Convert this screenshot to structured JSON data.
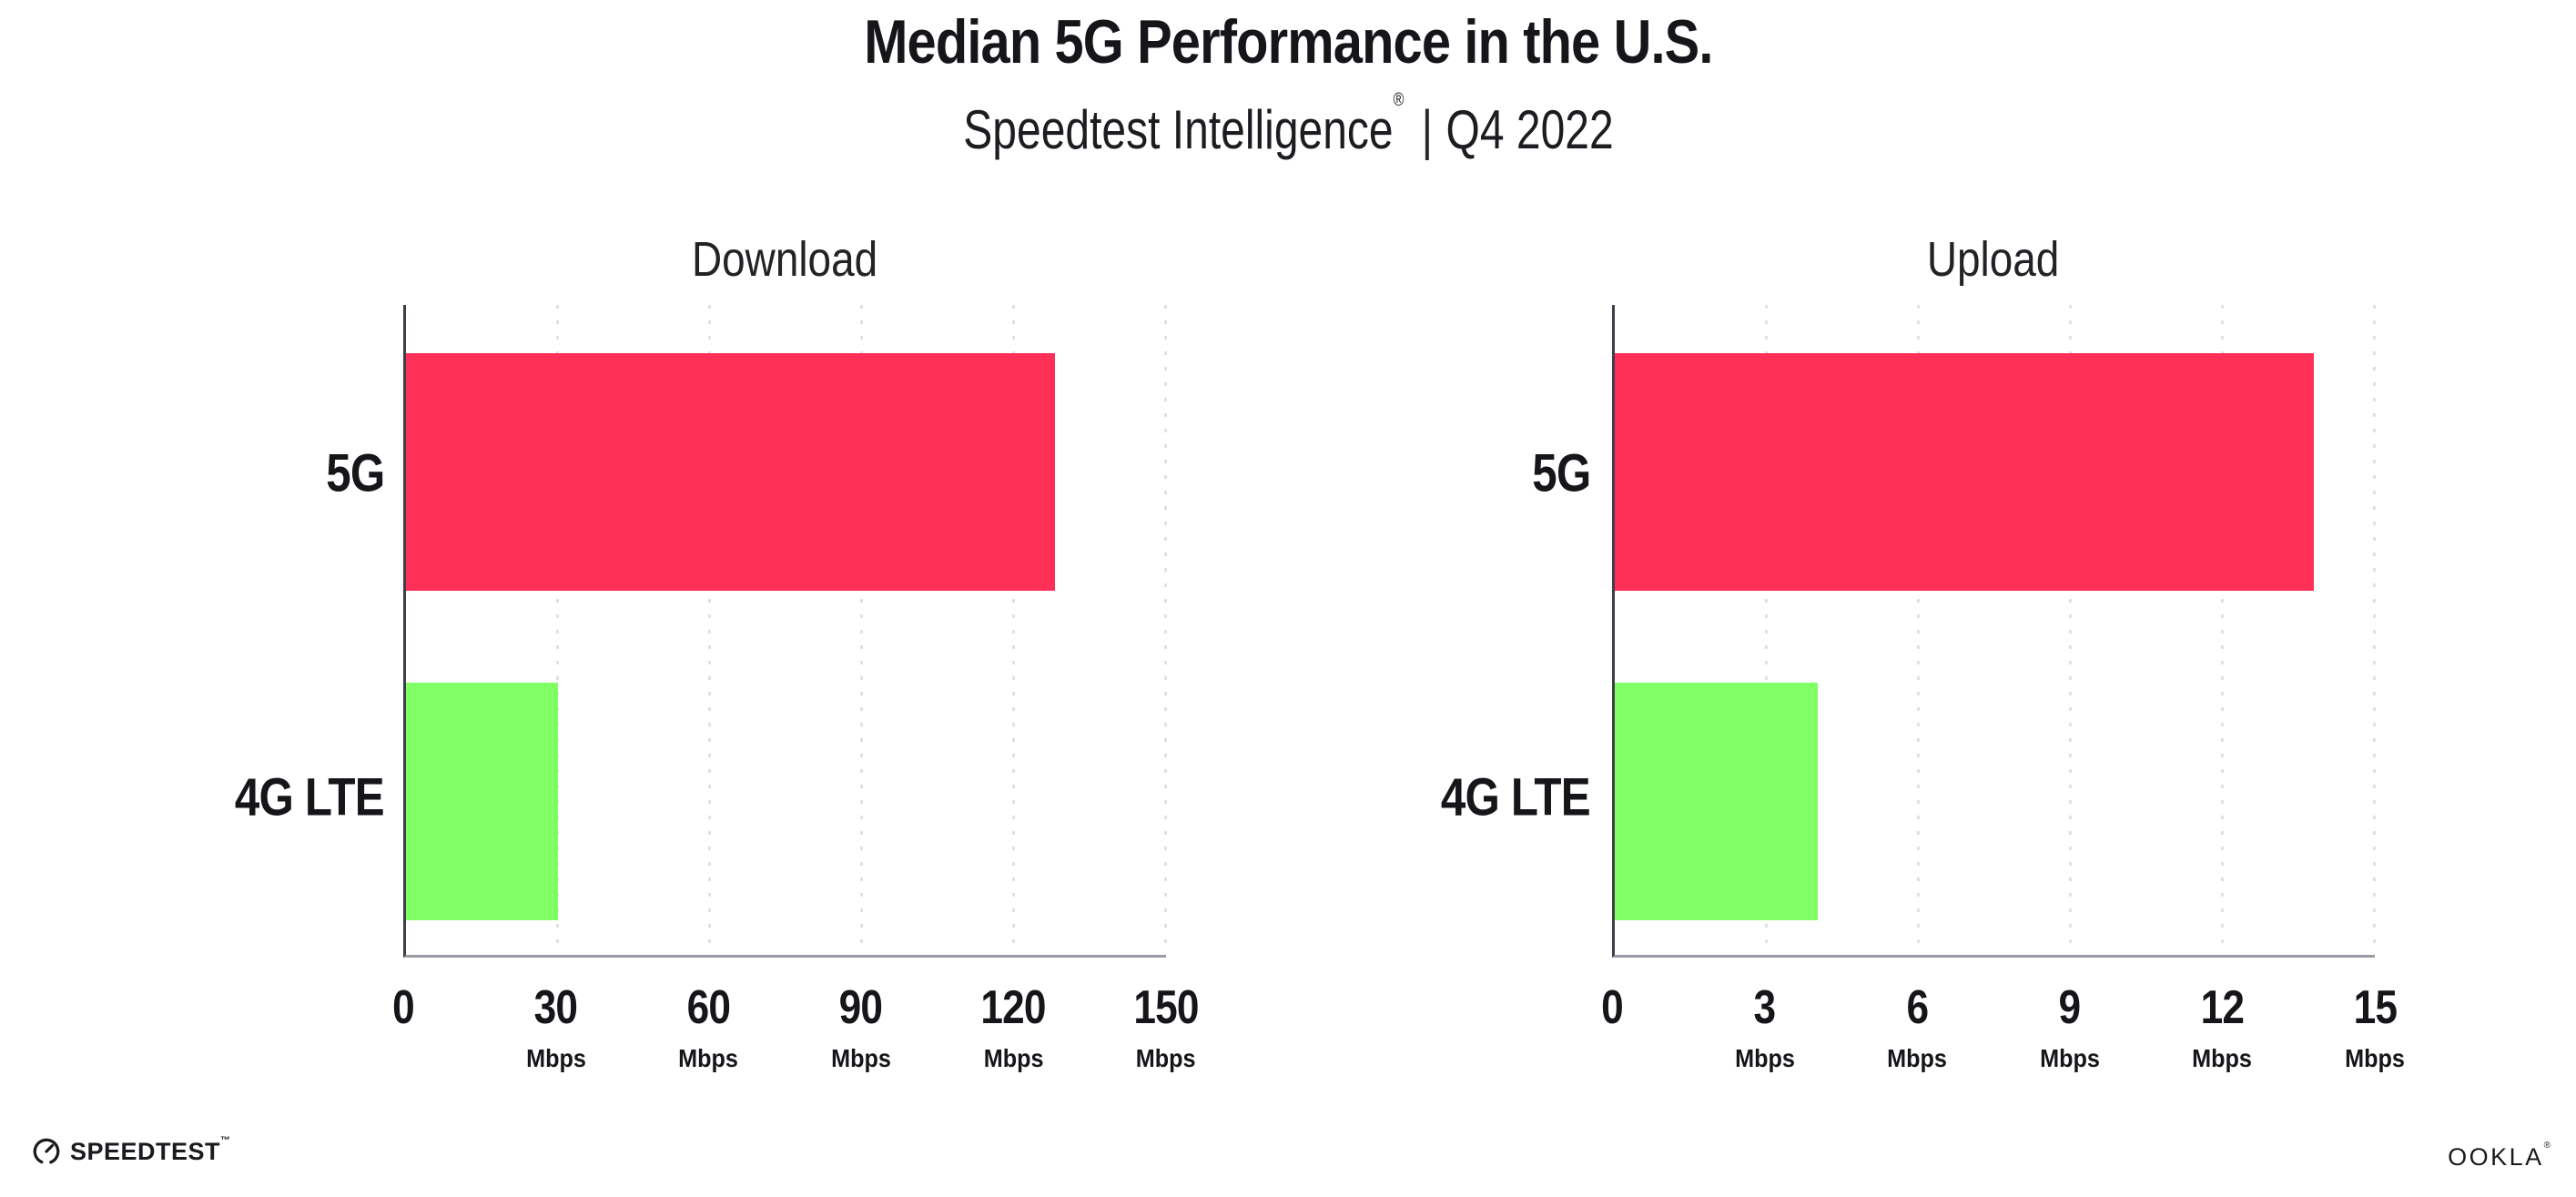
{
  "header": {
    "title": "Median 5G Performance in the U.S.",
    "subtitle_brand": "Speedtest Intelligence",
    "subtitle_reg": "®",
    "subtitle_divider": "|",
    "subtitle_period": "Q4 2022"
  },
  "colors": {
    "bar_5g": "#ff3058",
    "bar_4g_lte": "#80ff66",
    "gridline": "#e0e0ea",
    "y_axis_line": "#3f3f49",
    "x_axis_line": "#9b9ba3",
    "text": "#16161a"
  },
  "chart_data": [
    {
      "type": "bar",
      "orientation": "horizontal",
      "title": "Download",
      "categories": [
        "5G",
        "4G LTE"
      ],
      "values": [
        128,
        30
      ],
      "unit": "Mbps",
      "xlim": [
        0,
        150
      ],
      "xticks": [
        0,
        30,
        60,
        90,
        120,
        150
      ],
      "bar_colors": [
        "#ff3058",
        "#80ff66"
      ],
      "grid": "vertical-dotted",
      "legend": "none"
    },
    {
      "type": "bar",
      "orientation": "horizontal",
      "title": "Upload",
      "categories": [
        "5G",
        "4G LTE"
      ],
      "values": [
        13.8,
        4
      ],
      "unit": "Mbps",
      "xlim": [
        0,
        15
      ],
      "xticks": [
        0,
        3,
        6,
        9,
        12,
        15
      ],
      "bar_colors": [
        "#ff3058",
        "#80ff66"
      ],
      "grid": "vertical-dotted",
      "legend": "none"
    }
  ],
  "footer": {
    "speedtest_label": "SPEEDTEST",
    "speedtest_tm": "™",
    "ookla_label": "OOKLA",
    "ookla_reg": "®"
  }
}
